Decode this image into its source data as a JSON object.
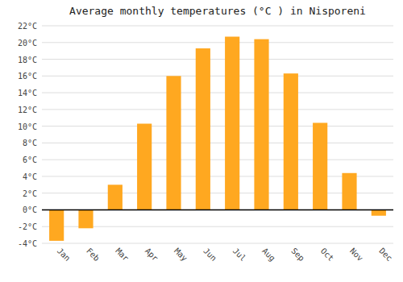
{
  "chart_data": {
    "type": "bar",
    "title": "Average monthly temperatures (°C ) in Nisporeni",
    "categories": [
      "Jan",
      "Feb",
      "Mar",
      "Apr",
      "May",
      "Jun",
      "Jul",
      "Aug",
      "Sep",
      "Oct",
      "Nov",
      "Dec"
    ],
    "values": [
      -3.7,
      -2.2,
      3.0,
      10.3,
      16.0,
      19.3,
      20.7,
      20.4,
      16.3,
      10.4,
      4.4,
      -0.7
    ],
    "color": "#FFA820",
    "ylim": [
      -4,
      22
    ],
    "yticks": [
      {
        "value": -4,
        "label": "-4°C"
      },
      {
        "value": -2,
        "label": "-2°C"
      },
      {
        "value": 0,
        "label": "0°C"
      },
      {
        "value": 2,
        "label": "2°C"
      },
      {
        "value": 4,
        "label": "4°C"
      },
      {
        "value": 6,
        "label": "6°C"
      },
      {
        "value": 8,
        "label": "8°C"
      },
      {
        "value": 10,
        "label": "10°C"
      },
      {
        "value": 12,
        "label": "12°C"
      },
      {
        "value": 14,
        "label": "14°C"
      },
      {
        "value": 16,
        "label": "16°C"
      },
      {
        "value": 18,
        "label": "18°C"
      },
      {
        "value": 20,
        "label": "20°C"
      },
      {
        "value": 22,
        "label": "22°C"
      }
    ],
    "grid": true
  }
}
